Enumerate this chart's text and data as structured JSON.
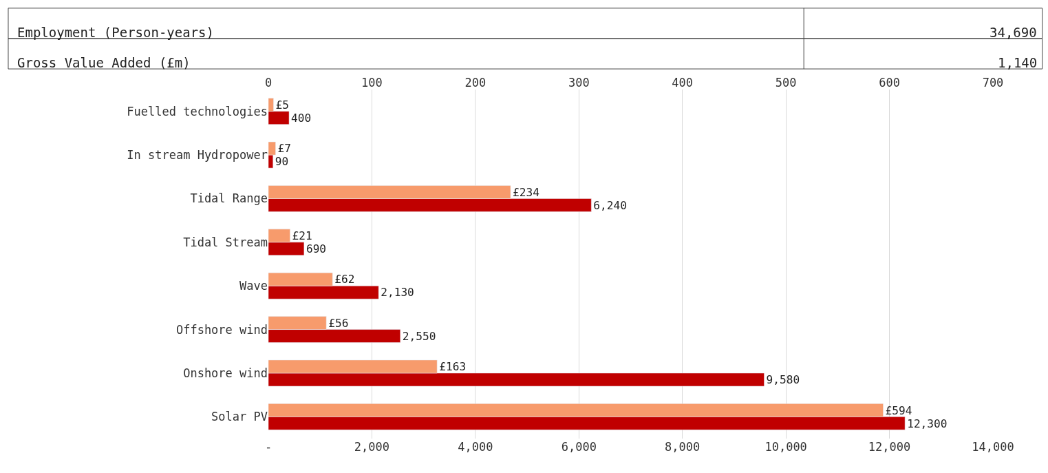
{
  "chart_data": {
    "type": "bar",
    "orientation": "horizontal",
    "categories": [
      "Fuelled technologies",
      "In stream Hydropower",
      "Tidal Range",
      "Tidal Stream",
      "Wave",
      "Offshore wind",
      "Onshore wind",
      "Solar PV"
    ],
    "series": [
      {
        "color": "#f79b6c",
        "axis": "x2",
        "values": [
          5,
          7,
          234,
          21,
          62,
          56,
          163,
          594
        ],
        "value_labels": [
          "£5",
          "£7",
          "£234",
          "£21",
          "£62",
          "£56",
          "£163",
          "£594"
        ]
      },
      {
        "color": "#c00000",
        "values": [
          400,
          90,
          6240,
          690,
          2130,
          2550,
          9580,
          12300
        ],
        "value_labels": [
          "400",
          "90",
          "6,240",
          "690",
          "2,130",
          "2,550",
          "9,580",
          "12,300"
        ]
      }
    ],
    "xlim": [
      0,
      14000
    ],
    "xticks": [
      {
        "value": 0,
        "label": "-"
      },
      {
        "value": 2000,
        "label": "2,000"
      },
      {
        "value": 4000,
        "label": "4,000"
      },
      {
        "value": 6000,
        "label": "6,000"
      },
      {
        "value": 8000,
        "label": "8,000"
      },
      {
        "value": 10000,
        "label": "10,000"
      },
      {
        "value": 12000,
        "label": "12,000"
      },
      {
        "value": 14000,
        "label": "14,000"
      }
    ],
    "x2lim": [
      0,
      700
    ],
    "x2ticks": [
      0,
      100,
      200,
      300,
      400,
      500,
      600,
      700
    ],
    "grid": "x",
    "annotations": [
      "Employment (Person-years)",
      "34,690",
      "Gross Value Added (£m)",
      "1,140"
    ]
  }
}
